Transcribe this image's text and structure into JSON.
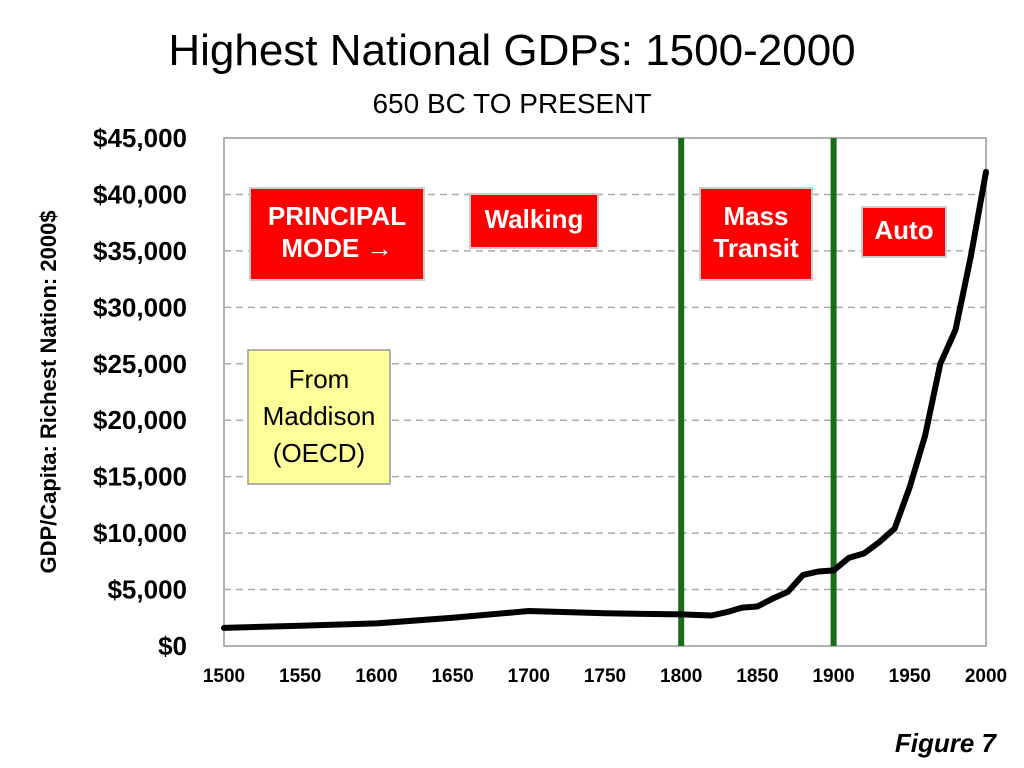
{
  "figure_label": "Figure 7",
  "chart_data": {
    "type": "line",
    "title": "Highest National GDPs: 1500-2000",
    "subtitle": "650 BC TO PRESENT",
    "xlabel": "",
    "ylabel": "GDP/Capita: Richest Nation: 2000$",
    "xlim": [
      1500,
      2000
    ],
    "ylim": [
      0,
      45000
    ],
    "x_ticks": [
      1500,
      1550,
      1600,
      1650,
      1700,
      1750,
      1800,
      1850,
      1900,
      1950,
      2000
    ],
    "y_ticks": [
      0,
      5000,
      10000,
      15000,
      20000,
      25000,
      30000,
      35000,
      40000,
      45000
    ],
    "y_tick_labels": [
      "$0",
      "$5,000",
      "$10,000",
      "$15,000",
      "$20,000",
      "$25,000",
      "$30,000",
      "$35,000",
      "$40,000",
      "$45,000"
    ],
    "grid": "horizontal dashed",
    "series": [
      {
        "name": "GDP per capita",
        "color": "#000000",
        "x": [
          1500,
          1550,
          1600,
          1650,
          1700,
          1750,
          1800,
          1820,
          1830,
          1840,
          1850,
          1860,
          1870,
          1880,
          1890,
          1900,
          1910,
          1920,
          1930,
          1940,
          1950,
          1960,
          1970,
          1980,
          1990,
          2000
        ],
        "y": [
          1600,
          1800,
          2000,
          2500,
          3100,
          2900,
          2800,
          2700,
          3000,
          3400,
          3500,
          4200,
          4800,
          6300,
          6600,
          6700,
          7800,
          8200,
          9200,
          10400,
          14100,
          18600,
          25000,
          28000,
          34500,
          42000
        ]
      }
    ],
    "vertical_lines": [
      {
        "x": 1800,
        "color": "#1a6b1a"
      },
      {
        "x": 1900,
        "color": "#1a6b1a"
      }
    ],
    "annotations": [
      {
        "lines": [
          "PRINCIPAL",
          "MODE →"
        ],
        "style": "red"
      },
      {
        "lines": [
          "Walking"
        ],
        "style": "red"
      },
      {
        "lines": [
          "Mass",
          "Transit"
        ],
        "style": "red"
      },
      {
        "lines": [
          "Auto"
        ],
        "style": "red"
      },
      {
        "lines": [
          "From",
          "Maddison",
          "(OECD)"
        ],
        "style": "yellow"
      }
    ],
    "colors": {
      "annotation_red": "#ff0000",
      "annotation_yellow": "#ffff99",
      "grid": "#aaaaaa",
      "plot_border": "#999999"
    }
  }
}
